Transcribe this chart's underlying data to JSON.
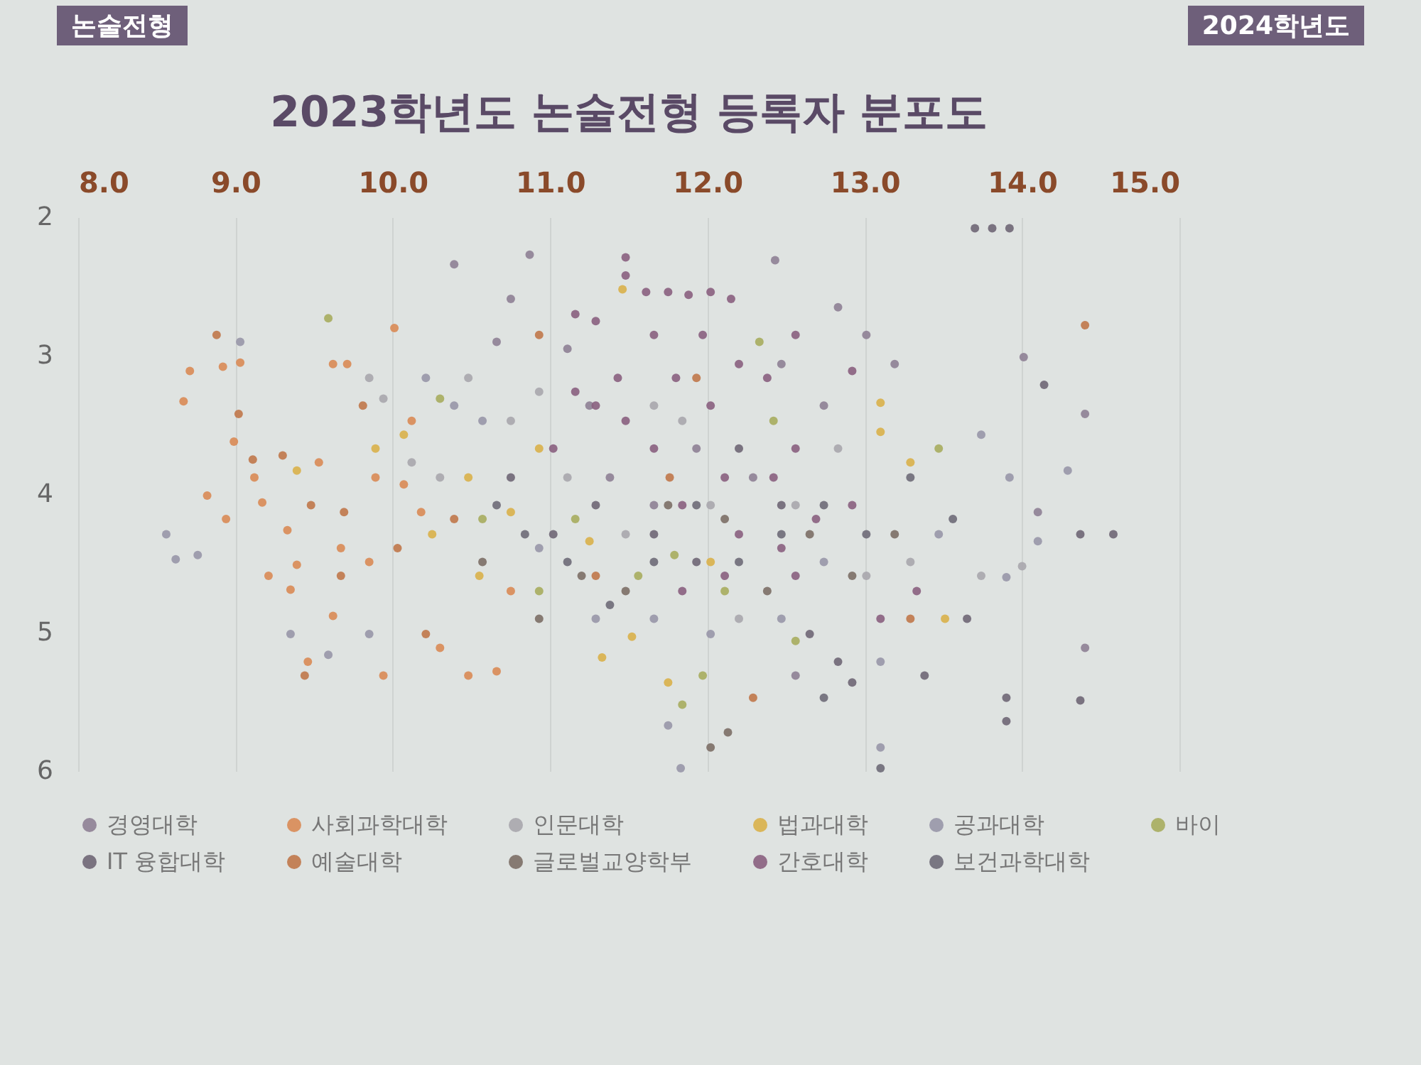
{
  "chart_data": {
    "type": "scatter",
    "title": "2023학년도 논술전형 등록자 분포도",
    "annotations": [
      "논술전형",
      "2024학년도"
    ],
    "xlim": [
      8,
      15
    ],
    "xticks": [
      {
        "value": 8,
        "label": "8.0"
      },
      {
        "value": 9,
        "label": "9.0"
      },
      {
        "value": 10,
        "label": "10.0"
      },
      {
        "value": 11,
        "label": "11.0"
      },
      {
        "value": 12,
        "label": "12.0"
      },
      {
        "value": 13,
        "label": "13.0"
      },
      {
        "value": 14,
        "label": "14.0"
      },
      {
        "value": 15,
        "label": "15.0"
      }
    ],
    "ylim": [
      6,
      2
    ],
    "yticks": [
      2,
      3,
      4,
      5,
      6
    ],
    "grid": "x",
    "legend": "bottom",
    "marker": "circle",
    "series": [
      {
        "name": "경영대학",
        "color": "#8e7f95",
        "x": [
          10.39,
          10.87,
          10.66,
          10.75,
          11.11,
          11.25,
          11.38,
          11.66,
          11.93,
          12.29,
          12.47,
          12.74,
          13.01,
          13.19,
          12.83,
          12.43,
          12.56,
          14.01,
          14.1,
          14.4,
          14.4
        ],
        "values": [
          2.34,
          2.27,
          2.9,
          2.59,
          2.95,
          3.36,
          3.88,
          4.08,
          3.67,
          3.88,
          3.06,
          3.36,
          2.85,
          3.06,
          2.65,
          2.31,
          5.31,
          3.01,
          4.13,
          3.42,
          5.11
        ]
      },
      {
        "name": "사회과학대학",
        "color": "#d98a55",
        "x": [
          8.67,
          8.71,
          8.92,
          9.03,
          8.82,
          8.94,
          9.17,
          9.21,
          9.39,
          9.33,
          9.46,
          9.62,
          9.71,
          9.53,
          9.89,
          9.67,
          9.62,
          9.94,
          10.01,
          10.07,
          10.18,
          10.3,
          10.48,
          10.66,
          10.75,
          8.99,
          9.12,
          9.35,
          9.85,
          10.12
        ],
        "values": [
          3.33,
          3.11,
          3.08,
          3.05,
          4.01,
          4.18,
          4.06,
          4.59,
          4.51,
          4.26,
          5.21,
          3.06,
          3.06,
          3.77,
          3.88,
          4.39,
          4.88,
          5.31,
          2.8,
          3.93,
          4.13,
          5.11,
          5.31,
          5.28,
          4.7,
          3.62,
          3.88,
          4.69,
          4.49,
          3.47
        ]
      },
      {
        "name": "인문대학",
        "color": "#a9a6ad",
        "x": [
          9.85,
          9.94,
          10.12,
          10.3,
          10.48,
          10.75,
          10.93,
          11.11,
          11.48,
          11.66,
          11.84,
          12.02,
          12.2,
          12.56,
          12.83,
          13.01,
          13.29,
          13.74,
          14.0
        ],
        "values": [
          3.16,
          3.31,
          3.77,
          3.88,
          3.16,
          3.47,
          3.26,
          3.88,
          4.29,
          3.36,
          3.47,
          4.08,
          4.9,
          4.08,
          3.67,
          4.59,
          4.49,
          4.59,
          4.52
        ]
      },
      {
        "name": "법과대학",
        "color": "#d9b04a",
        "x": [
          9.39,
          9.89,
          10.07,
          10.25,
          10.48,
          10.55,
          10.75,
          10.93,
          11.25,
          11.46,
          11.52,
          11.75,
          12.02,
          13.1,
          13.1,
          13.29,
          13.51,
          11.33
        ],
        "values": [
          3.83,
          3.67,
          3.57,
          4.29,
          3.88,
          4.59,
          4.13,
          3.67,
          4.34,
          2.52,
          5.03,
          5.36,
          4.49,
          3.34,
          3.55,
          3.77,
          4.9,
          5.18
        ]
      },
      {
        "name": "공과대학",
        "color": "#9896a8",
        "x": [
          8.56,
          8.62,
          8.76,
          9.03,
          9.35,
          9.59,
          9.85,
          10.21,
          10.39,
          10.57,
          10.93,
          11.29,
          11.66,
          12.02,
          12.47,
          12.74,
          13.1,
          13.47,
          13.74,
          13.92,
          14.29,
          14.1,
          13.9,
          13.1,
          11.75,
          11.83
        ],
        "values": [
          4.29,
          4.47,
          4.44,
          2.9,
          5.01,
          5.16,
          5.01,
          3.16,
          3.36,
          3.47,
          4.39,
          4.9,
          4.9,
          5.01,
          4.9,
          4.49,
          5.21,
          4.29,
          3.57,
          3.88,
          3.83,
          4.34,
          4.6,
          5.83,
          5.67,
          5.98
        ]
      },
      {
        "name": "바이",
        "color": "#a7ac5e",
        "x": [
          9.59,
          10.3,
          10.57,
          10.93,
          11.16,
          11.56,
          11.79,
          11.97,
          12.33,
          12.42,
          12.11,
          12.56,
          13.47,
          11.84
        ],
        "values": [
          2.73,
          3.31,
          4.18,
          4.7,
          4.18,
          4.59,
          4.44,
          5.31,
          2.9,
          3.47,
          4.7,
          5.06,
          3.67,
          5.52
        ]
      },
      {
        "name": "IT 융합대학",
        "color": "#6f6675",
        "x": [
          10.75,
          11.02,
          11.29,
          11.66,
          11.93,
          12.2,
          12.47,
          12.65,
          12.83,
          12.92,
          13.38,
          13.65,
          13.7,
          13.81,
          13.92,
          14.14,
          14.37,
          14.58,
          13.9,
          13.9,
          14.37
        ],
        "values": [
          3.88,
          4.29,
          4.08,
          4.29,
          4.49,
          3.67,
          4.08,
          5.01,
          5.21,
          5.36,
          5.31,
          4.9,
          2.08,
          2.08,
          2.08,
          3.21,
          4.29,
          4.29,
          5.47,
          5.64,
          5.49
        ]
      },
      {
        "name": "예술대학",
        "color": "#c0774a",
        "x": [
          8.88,
          9.02,
          9.11,
          9.3,
          9.48,
          9.69,
          9.44,
          10.03,
          10.21,
          10.39,
          9.67,
          9.81,
          10.93,
          11.29,
          11.76,
          12.29,
          13.29,
          14.4,
          11.93
        ],
        "values": [
          2.85,
          3.42,
          3.75,
          3.72,
          4.08,
          4.13,
          5.31,
          4.39,
          5.01,
          4.18,
          4.59,
          3.36,
          2.85,
          4.59,
          3.88,
          5.47,
          4.9,
          2.78,
          3.16
        ]
      },
      {
        "name": "글로벌교양학부",
        "color": "#7c6e66",
        "x": [
          10.57,
          10.93,
          11.2,
          11.48,
          11.75,
          12.11,
          12.38,
          12.65,
          12.92,
          13.19,
          12.02,
          12.13
        ],
        "values": [
          4.49,
          4.9,
          4.59,
          4.7,
          4.08,
          4.18,
          4.7,
          4.29,
          4.59,
          4.29,
          5.83,
          5.72
        ]
      },
      {
        "name": "간호대학",
        "color": "#8a5f80",
        "x": [
          11.16,
          11.29,
          11.48,
          11.48,
          11.61,
          11.75,
          11.88,
          12.02,
          12.15,
          11.43,
          11.48,
          11.66,
          11.66,
          11.8,
          11.84,
          11.97,
          12.02,
          12.11,
          12.2,
          12.2,
          12.38,
          12.42,
          12.47,
          12.56,
          12.56,
          12.69,
          12.92,
          12.92,
          13.1,
          13.33,
          11.29,
          11.16,
          11.02,
          11.84,
          12.11,
          12.56
        ],
        "values": [
          2.7,
          2.75,
          2.29,
          2.42,
          2.54,
          2.54,
          2.56,
          2.54,
          2.59,
          3.16,
          3.47,
          2.85,
          3.67,
          3.16,
          4.08,
          2.85,
          3.36,
          3.88,
          3.06,
          4.29,
          3.16,
          3.88,
          4.39,
          2.85,
          3.67,
          4.18,
          3.11,
          4.08,
          4.9,
          4.7,
          3.36,
          3.26,
          3.67,
          4.7,
          4.59,
          4.59
        ]
      },
      {
        "name": "보건과학대학",
        "color": "#6e6a78",
        "x": [
          10.66,
          10.84,
          11.11,
          11.38,
          11.66,
          11.93,
          12.2,
          12.47,
          12.74,
          13.01,
          13.29,
          13.56,
          12.74,
          13.1
        ],
        "values": [
          4.08,
          4.29,
          4.49,
          4.8,
          4.49,
          4.08,
          4.49,
          4.29,
          4.08,
          4.29,
          3.88,
          4.18,
          5.47,
          5.98
        ]
      }
    ]
  }
}
